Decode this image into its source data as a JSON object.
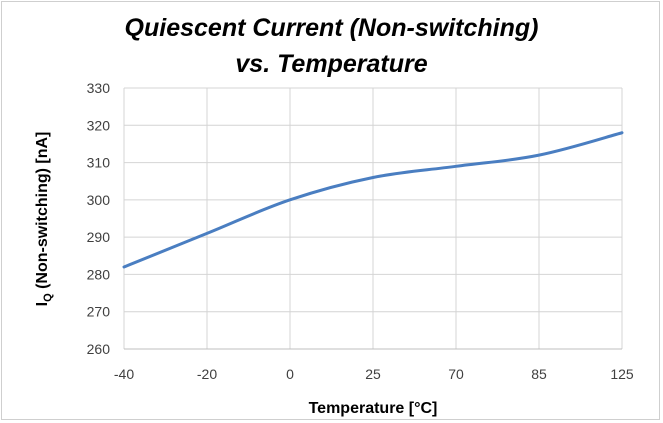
{
  "chart_data": {
    "type": "line",
    "title_lines": [
      "Quiescent Current (Non-switching)",
      "vs. Temperature"
    ],
    "xlabel": "Temperature [°C]",
    "ylabel_main": "I",
    "ylabel_sub": "Q",
    "ylabel_rest": " (Non-switching) [nA]",
    "categories": [
      "-40",
      "-20",
      "0",
      "25",
      "70",
      "85",
      "125"
    ],
    "series": [
      {
        "color": "#4a7ec1",
        "values": [
          282,
          291,
          300,
          306,
          309,
          312,
          318
        ]
      }
    ],
    "ylim": [
      260,
      330
    ],
    "yticks": [
      260,
      270,
      280,
      290,
      300,
      310,
      320,
      330
    ],
    "grid": true,
    "legend": "none"
  }
}
